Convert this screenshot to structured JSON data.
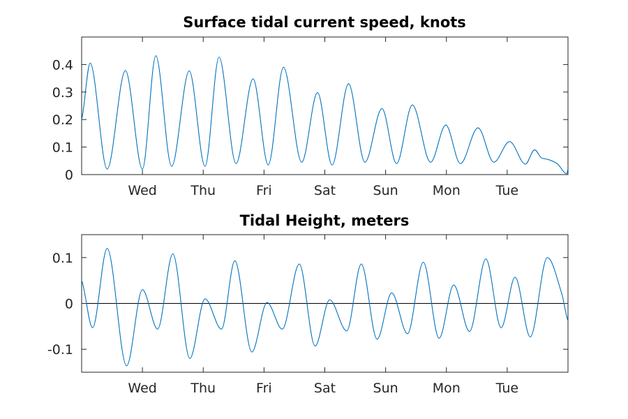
{
  "chart_data": [
    {
      "type": "line",
      "title": "Surface tidal current speed, knots",
      "x_tick_labels": [
        "Wed",
        "Thu",
        "Fri",
        "Sat",
        "Sun",
        "Mon",
        "Tue"
      ],
      "x_tick_values": [
        1,
        2,
        3,
        4,
        5,
        6,
        7
      ],
      "xlim": [
        0,
        8
      ],
      "ylim": [
        0,
        0.5
      ],
      "y_ticks": [
        0,
        0.1,
        0.2,
        0.3,
        0.4
      ],
      "y_tick_labels": [
        "0",
        "0.1",
        "0.2",
        "0.3",
        "0.4"
      ],
      "grid": false,
      "series": [
        {
          "color": "#0072BD",
          "x": [
            0,
            0.14,
            0.42,
            0.72,
            1.0,
            1.22,
            1.48,
            1.77,
            2.03,
            2.26,
            2.54,
            2.82,
            3.07,
            3.32,
            3.62,
            3.88,
            4.12,
            4.39,
            4.66,
            4.94,
            5.18,
            5.44,
            5.74,
            5.99,
            6.23,
            6.52,
            6.78,
            7.04,
            7.3,
            7.45,
            7.57,
            7.67,
            7.82,
            7.98,
            8.0
          ],
          "y": [
            0.2,
            0.405,
            0.02,
            0.378,
            0.02,
            0.432,
            0.03,
            0.377,
            0.03,
            0.427,
            0.04,
            0.348,
            0.035,
            0.39,
            0.045,
            0.298,
            0.035,
            0.33,
            0.045,
            0.24,
            0.04,
            0.253,
            0.045,
            0.18,
            0.04,
            0.17,
            0.045,
            0.12,
            0.038,
            0.09,
            0.06,
            0.055,
            0.04,
            0.003,
            0.02
          ]
        }
      ]
    },
    {
      "type": "line",
      "title": "Tidal Height, meters",
      "x_tick_labels": [
        "Wed",
        "Thu",
        "Fri",
        "Sat",
        "Sun",
        "Mon",
        "Tue"
      ],
      "x_tick_values": [
        1,
        2,
        3,
        4,
        5,
        6,
        7
      ],
      "xlim": [
        0,
        8
      ],
      "ylim": [
        -0.15,
        0.15
      ],
      "y_ticks": [
        -0.1,
        0,
        0.1
      ],
      "y_tick_labels": [
        "-0.1",
        "0",
        "0.1"
      ],
      "grid": false,
      "zero_line": true,
      "series": [
        {
          "color": "#0072BD",
          "x": [
            0,
            0.18,
            0.42,
            0.74,
            1.0,
            1.25,
            1.5,
            1.78,
            2.03,
            2.3,
            2.52,
            2.8,
            3.05,
            3.3,
            3.58,
            3.84,
            4.08,
            4.36,
            4.6,
            4.86,
            5.1,
            5.36,
            5.62,
            5.88,
            6.12,
            6.38,
            6.65,
            6.9,
            7.13,
            7.38,
            7.66,
            7.9,
            8.0
          ],
          "y": [
            0.05,
            -0.053,
            0.12,
            -0.136,
            0.03,
            -0.056,
            0.108,
            -0.12,
            0.01,
            -0.056,
            0.093,
            -0.106,
            0.002,
            -0.056,
            0.086,
            -0.093,
            0.008,
            -0.06,
            0.086,
            -0.078,
            0.023,
            -0.066,
            0.09,
            -0.076,
            0.04,
            -0.061,
            0.097,
            -0.053,
            0.057,
            -0.073,
            0.1,
            0.02,
            -0.038
          ]
        }
      ]
    }
  ]
}
